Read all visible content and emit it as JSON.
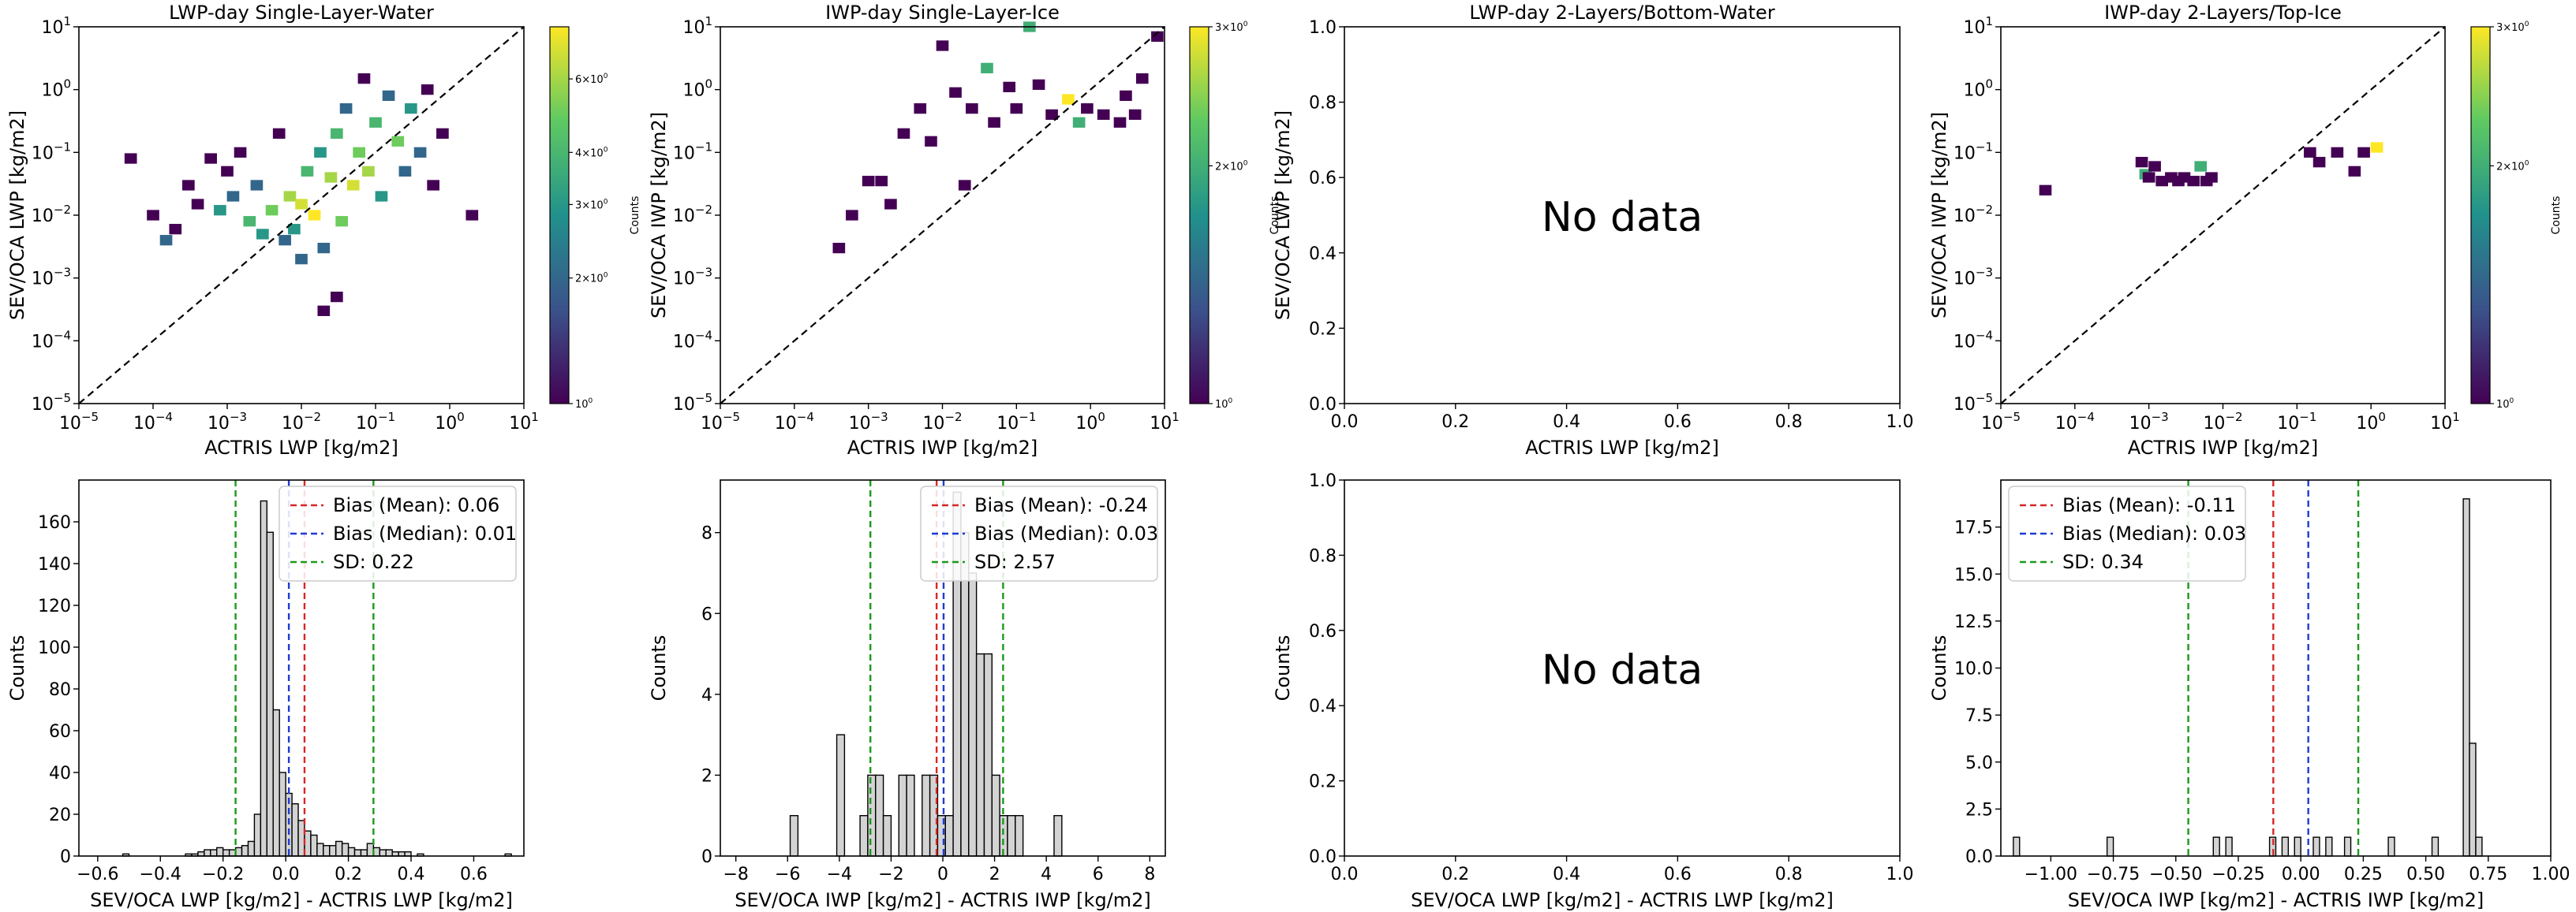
{
  "chart_data": [
    {
      "type": "heatmap",
      "title": "LWP-day Single-Layer-Water",
      "xlabel": "ACTRIS LWP [kg/m2]",
      "ylabel": "SEV/OCA LWP [kg/m2]",
      "xscale": "log",
      "yscale": "log",
      "xlim": [
        1e-05,
        10
      ],
      "ylim": [
        1e-05,
        10
      ],
      "xticks": [
        "10^-5",
        "10^-4",
        "10^-3",
        "10^-2",
        "10^-1",
        "10^0",
        "10^1"
      ],
      "yticks": [
        "10^-5",
        "10^-4",
        "10^-3",
        "10^-2",
        "10^-1",
        "10^0",
        "10^1"
      ],
      "diagonal": "1:1 dashed line",
      "colorbar": {
        "label": "Counts",
        "scale": "log",
        "range": [
          1,
          8
        ],
        "ticks": [
          "10^0",
          "2x10^0",
          "3x10^0",
          "4x10^0",
          "6x10^0"
        ]
      },
      "cells": [
        [
          5e-05,
          0.08,
          1
        ],
        [
          0.0001,
          0.01,
          1
        ],
        [
          0.00015,
          0.004,
          2
        ],
        [
          0.0002,
          0.006,
          1
        ],
        [
          0.0003,
          0.03,
          1
        ],
        [
          0.0004,
          0.015,
          1
        ],
        [
          0.0006,
          0.08,
          1
        ],
        [
          0.0008,
          0.012,
          3
        ],
        [
          0.001,
          0.05,
          1
        ],
        [
          0.0012,
          0.02,
          2
        ],
        [
          0.0015,
          0.1,
          1
        ],
        [
          0.002,
          0.008,
          4
        ],
        [
          0.0025,
          0.03,
          2
        ],
        [
          0.003,
          0.005,
          3
        ],
        [
          0.004,
          0.012,
          5
        ],
        [
          0.005,
          0.2,
          1
        ],
        [
          0.006,
          0.004,
          2
        ],
        [
          0.007,
          0.02,
          6
        ],
        [
          0.008,
          0.006,
          3
        ],
        [
          0.01,
          0.015,
          7
        ],
        [
          0.012,
          0.05,
          4
        ],
        [
          0.015,
          0.01,
          8
        ],
        [
          0.018,
          0.1,
          3
        ],
        [
          0.02,
          0.003,
          2
        ],
        [
          0.025,
          0.04,
          6
        ],
        [
          0.03,
          0.2,
          4
        ],
        [
          0.035,
          0.008,
          5
        ],
        [
          0.04,
          0.5,
          2
        ],
        [
          0.05,
          0.03,
          7
        ],
        [
          0.06,
          0.1,
          5
        ],
        [
          0.07,
          1.5,
          1
        ],
        [
          0.08,
          0.05,
          6
        ],
        [
          0.1,
          0.3,
          4
        ],
        [
          0.12,
          0.02,
          3
        ],
        [
          0.15,
          0.8,
          2
        ],
        [
          0.2,
          0.15,
          5
        ],
        [
          0.25,
          0.05,
          2
        ],
        [
          0.3,
          0.5,
          3
        ],
        [
          0.4,
          0.1,
          2
        ],
        [
          0.5,
          1,
          1
        ],
        [
          0.6,
          0.03,
          1
        ],
        [
          0.8,
          0.2,
          1
        ],
        [
          2,
          0.01,
          1
        ],
        [
          0.02,
          0.0003,
          1
        ],
        [
          0.03,
          0.0005,
          1
        ],
        [
          0.01,
          0.002,
          2
        ]
      ]
    },
    {
      "type": "heatmap",
      "title": "IWP-day Single-Layer-Ice",
      "xlabel": "ACTRIS IWP [kg/m2]",
      "ylabel": "SEV/OCA IWP [kg/m2]",
      "xscale": "log",
      "yscale": "log",
      "xlim": [
        1e-05,
        10
      ],
      "ylim": [
        1e-05,
        10
      ],
      "xticks": [
        "10^-5",
        "10^-4",
        "10^-3",
        "10^-2",
        "10^-1",
        "10^0",
        "10^1"
      ],
      "yticks": [
        "10^-5",
        "10^-4",
        "10^-3",
        "10^-2",
        "10^-1",
        "10^0",
        "10^1"
      ],
      "diagonal": "1:1 dashed line",
      "colorbar": {
        "label": "Counts",
        "scale": "log",
        "range": [
          1,
          3
        ],
        "ticks": [
          "10^0",
          "2x10^0",
          "3x10^0"
        ]
      },
      "cells": [
        [
          0.0004,
          0.003,
          1
        ],
        [
          0.0006,
          0.01,
          1
        ],
        [
          0.001,
          0.035,
          1
        ],
        [
          0.0015,
          0.035,
          1
        ],
        [
          0.002,
          0.015,
          1
        ],
        [
          0.003,
          0.2,
          1
        ],
        [
          0.005,
          0.5,
          1
        ],
        [
          0.007,
          0.15,
          1
        ],
        [
          0.01,
          5,
          1
        ],
        [
          0.015,
          0.9,
          1
        ],
        [
          0.02,
          0.03,
          1
        ],
        [
          0.025,
          0.5,
          1
        ],
        [
          0.04,
          2.2,
          2
        ],
        [
          0.05,
          0.3,
          1
        ],
        [
          0.08,
          1.1,
          1
        ],
        [
          0.1,
          0.5,
          1
        ],
        [
          0.15,
          10,
          2
        ],
        [
          0.2,
          1.2,
          1
        ],
        [
          0.3,
          0.4,
          1
        ],
        [
          0.5,
          0.7,
          3
        ],
        [
          0.7,
          0.3,
          2
        ],
        [
          0.9,
          0.5,
          1
        ],
        [
          1.5,
          0.4,
          1
        ],
        [
          3,
          0.8,
          1
        ],
        [
          4,
          0.4,
          1
        ],
        [
          5,
          1.5,
          1
        ],
        [
          8,
          7,
          1
        ],
        [
          2.5,
          0.3,
          1
        ]
      ]
    },
    {
      "type": "heatmap",
      "title": "LWP-day 2-Layers/Bottom-Water",
      "xlabel": "ACTRIS LWP [kg/m2]",
      "ylabel": "SEV/OCA LWP [kg/m2]",
      "xlim": [
        0,
        1
      ],
      "ylim": [
        0,
        1
      ],
      "xticks": [
        "0.0",
        "0.2",
        "0.4",
        "0.6",
        "0.8",
        "1.0"
      ],
      "yticks": [
        "0.0",
        "0.2",
        "0.4",
        "0.6",
        "0.8",
        "1.0"
      ],
      "annotation": "No data",
      "cells": []
    },
    {
      "type": "heatmap",
      "title": "IWP-day 2-Layers/Top-Ice",
      "xlabel": "ACTRIS IWP [kg/m2]",
      "ylabel": "SEV/OCA IWP [kg/m2]",
      "xscale": "log",
      "yscale": "log",
      "xlim": [
        1e-05,
        10
      ],
      "ylim": [
        1e-05,
        10
      ],
      "xticks": [
        "10^-5",
        "10^-4",
        "10^-3",
        "10^-2",
        "10^-1",
        "10^0",
        "10^1"
      ],
      "yticks": [
        "10^-5",
        "10^-4",
        "10^-3",
        "10^-2",
        "10^-1",
        "10^0",
        "10^1"
      ],
      "diagonal": "1:1 dashed line",
      "colorbar": {
        "label": "Counts",
        "scale": "log",
        "range": [
          1,
          3
        ],
        "ticks": [
          "10^0",
          "2x10^0",
          "3x10^0"
        ]
      },
      "cells": [
        [
          4e-05,
          0.025,
          1
        ],
        [
          0.0008,
          0.07,
          1
        ],
        [
          0.0009,
          0.045,
          2
        ],
        [
          0.001,
          0.04,
          1
        ],
        [
          0.0012,
          0.06,
          1
        ],
        [
          0.0015,
          0.035,
          1
        ],
        [
          0.002,
          0.04,
          1
        ],
        [
          0.0025,
          0.035,
          1
        ],
        [
          0.003,
          0.04,
          1
        ],
        [
          0.004,
          0.035,
          1
        ],
        [
          0.005,
          0.06,
          2
        ],
        [
          0.006,
          0.035,
          1
        ],
        [
          0.007,
          0.04,
          1
        ],
        [
          0.15,
          0.1,
          1
        ],
        [
          0.2,
          0.07,
          1
        ],
        [
          0.35,
          0.1,
          1
        ],
        [
          0.6,
          0.05,
          1
        ],
        [
          0.8,
          0.1,
          1
        ],
        [
          1.2,
          0.12,
          3
        ]
      ]
    },
    {
      "type": "bar",
      "subtype": "histogram",
      "xlabel": "SEV/OCA LWP [kg/m2] - ACTRIS LWP [kg/m2]",
      "ylabel": "Counts",
      "xlim": [
        -0.66,
        0.76
      ],
      "ylim": [
        0,
        180
      ],
      "xticks": [
        "−0.6",
        "−0.4",
        "−0.2",
        "0.0",
        "0.2",
        "0.4",
        "0.6"
      ],
      "yticks": [
        "0",
        "20",
        "40",
        "60",
        "80",
        "100",
        "120",
        "140",
        "160"
      ],
      "bin_width": 0.02,
      "bin_start": -0.52,
      "values": [
        1,
        0,
        0,
        0,
        0,
        0,
        0,
        0,
        0,
        0,
        1,
        1,
        2,
        3,
        3,
        4,
        3,
        3,
        4,
        5,
        7,
        20,
        170,
        155,
        70,
        40,
        30,
        25,
        17,
        12,
        10,
        6,
        5,
        5,
        7,
        6,
        4,
        3,
        3,
        6,
        4,
        3,
        3,
        2,
        2,
        2,
        0,
        1,
        0,
        0,
        0,
        0,
        0,
        0,
        0,
        0,
        0,
        0,
        0,
        0,
        0,
        1
      ],
      "legend": {
        "position": "top-right",
        "entries": [
          "Bias (Mean): 0.06",
          "Bias (Median): 0.01",
          "SD: 0.22"
        ]
      },
      "vlines": [
        {
          "x": 0.06,
          "color": "#d62728"
        },
        {
          "x": 0.01,
          "color": "#1f3bd6"
        },
        {
          "x": -0.16,
          "color": "#1a9a1a"
        },
        {
          "x": 0.28,
          "color": "#1a9a1a"
        }
      ]
    },
    {
      "type": "bar",
      "subtype": "histogram",
      "xlabel": "SEV/OCA IWP [kg/m2] - ACTRIS IWP [kg/m2]",
      "ylabel": "Counts",
      "xlim": [
        -8.6,
        8.6
      ],
      "ylim": [
        0,
        9.3
      ],
      "xticks": [
        "−8",
        "−6",
        "−4",
        "−2",
        "0",
        "2",
        "4",
        "6",
        "8"
      ],
      "yticks": [
        "0",
        "2",
        "4",
        "6",
        "8"
      ],
      "bin_width": 0.3,
      "bin_start": -5.9,
      "values": [
        1,
        0,
        0,
        0,
        0,
        0,
        3,
        0,
        0,
        1,
        2,
        2,
        1,
        0,
        2,
        2,
        0,
        2,
        2,
        1,
        1,
        9,
        8,
        7,
        5,
        5,
        2,
        1,
        1,
        1,
        0,
        0,
        0,
        0,
        1
      ],
      "legend": {
        "position": "top-right",
        "entries": [
          "Bias (Mean): -0.24",
          "Bias (Median): 0.03",
          "SD: 2.57"
        ]
      },
      "vlines": [
        {
          "x": -0.24,
          "color": "#d62728"
        },
        {
          "x": 0.03,
          "color": "#1f3bd6"
        },
        {
          "x": -2.8,
          "color": "#1a9a1a"
        },
        {
          "x": 2.33,
          "color": "#1a9a1a"
        }
      ]
    },
    {
      "type": "bar",
      "subtype": "histogram",
      "xlabel": "SEV/OCA LWP [kg/m2] - ACTRIS LWP [kg/m2]",
      "ylabel": "Counts",
      "xlim": [
        0,
        1
      ],
      "ylim": [
        0,
        1
      ],
      "xticks": [
        "0.0",
        "0.2",
        "0.4",
        "0.6",
        "0.8",
        "1.0"
      ],
      "yticks": [
        "0.0",
        "0.2",
        "0.4",
        "0.6",
        "0.8",
        "1.0"
      ],
      "annotation": "No data",
      "values": []
    },
    {
      "type": "bar",
      "subtype": "histogram",
      "xlabel": "SEV/OCA IWP [kg/m2] - ACTRIS IWP [kg/m2]",
      "ylabel": "Counts",
      "xlim": [
        -1.2,
        1.0
      ],
      "ylim": [
        0,
        20
      ],
      "xticks": [
        "−1.00",
        "−0.75",
        "−0.50",
        "−0.25",
        "0.00",
        "0.25",
        "0.50",
        "0.75",
        "1.00"
      ],
      "yticks": [
        "0.0",
        "2.5",
        "5.0",
        "7.5",
        "10.0",
        "12.5",
        "15.0",
        "17.5"
      ],
      "bin_width": 0.025,
      "bin_start": -1.15,
      "values": [
        1,
        0,
        0,
        0,
        0,
        0,
        0,
        0,
        0,
        0,
        0,
        0,
        0,
        0,
        0,
        1,
        0,
        0,
        0,
        0,
        0,
        0,
        0,
        0,
        0,
        0,
        0,
        0,
        0,
        0,
        0,
        0,
        1,
        0,
        1,
        0,
        0,
        0,
        0,
        0,
        0,
        1,
        0,
        1,
        0,
        1,
        0,
        0,
        1,
        0,
        1,
        0,
        0,
        1,
        0,
        0,
        0,
        0,
        0,
        0,
        1,
        0,
        0,
        0,
        0,
        0,
        0,
        1,
        0,
        0,
        0,
        0,
        19,
        6,
        1
      ],
      "legend": {
        "position": "top-left",
        "entries": [
          "Bias (Mean): -0.11",
          "Bias (Median): 0.03",
          "SD: 0.34"
        ]
      },
      "vlines": [
        {
          "x": -0.11,
          "color": "#d62728"
        },
        {
          "x": 0.03,
          "color": "#1f3bd6"
        },
        {
          "x": -0.45,
          "color": "#1a9a1a"
        },
        {
          "x": 0.23,
          "color": "#1a9a1a"
        }
      ]
    }
  ]
}
